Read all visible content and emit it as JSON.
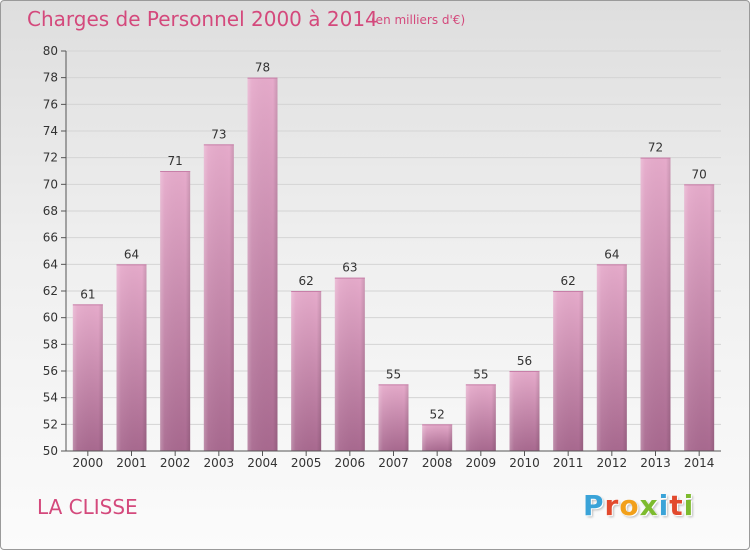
{
  "header": {
    "title": "Charges de Personnel 2000 à 2014",
    "unit": "(en milliers d'€)"
  },
  "footer": {
    "commune": "LA CLISSE",
    "brand": "Proxiti",
    "brand_colors": [
      "#3aa3d8",
      "#e24a2e",
      "#f2a01a",
      "#7dbb2e",
      "#3aa3d8",
      "#e24a2e",
      "#7dbb2e"
    ]
  },
  "colors": {
    "title": "#d4497c",
    "bar_light": "#e5a9c9",
    "bar_dark": "#a96a93",
    "axis": "#555555",
    "grid": "#cfcfcf"
  },
  "chart_data": {
    "type": "bar",
    "categories": [
      "2000",
      "2001",
      "2002",
      "2003",
      "2004",
      "2005",
      "2006",
      "2007",
      "2008",
      "2009",
      "2010",
      "2011",
      "2012",
      "2013",
      "2014"
    ],
    "values": [
      61,
      64,
      71,
      73,
      78,
      62,
      63,
      55,
      52,
      55,
      56,
      62,
      64,
      72,
      70
    ],
    "ylim": [
      50,
      80
    ],
    "ytick_step": 2,
    "grid": true,
    "data_labels": true
  }
}
